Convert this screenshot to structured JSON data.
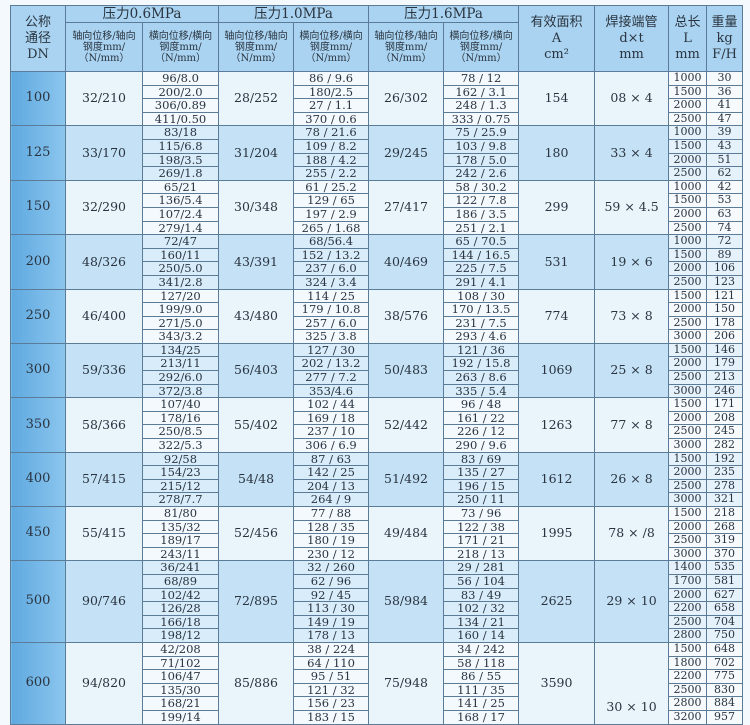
{
  "header": {
    "dn": [
      "公称",
      "通径",
      "DN"
    ],
    "pressures": [
      "压力0.6MPa",
      "压力1.0MPa",
      "压力1.6MPa"
    ],
    "axial": [
      "轴向位移/轴向",
      "钢度mm/",
      "（N/mm）"
    ],
    "lateral": [
      "横向位移/横向",
      "钢度mm/",
      "（N/mm）"
    ],
    "area": [
      "有效面积",
      "A",
      "cm²"
    ],
    "pipe": [
      "焊接端管",
      "d×t",
      "mm"
    ],
    "length": [
      "总长",
      "L",
      "mm"
    ],
    "weight": [
      "重量",
      "kg",
      "F/H"
    ]
  },
  "groups": [
    {
      "dn": "100",
      "a06": "32/210",
      "l06": [
        "96/8.0",
        "200/2.0",
        "306/0.89",
        "411/0.50"
      ],
      "a10": "28/252",
      "l10": [
        "86 / 9.6",
        "180/2.5",
        "27 / 1.1",
        "370 / 0.6"
      ],
      "a16": "26/302",
      "l16": [
        "78 / 12",
        "162 / 3.1",
        "248 / 1.3",
        "333 / 0.75"
      ],
      "area": "154",
      "pipe": "08 × 4",
      "len": [
        "1000",
        "1500",
        "2000",
        "2500"
      ],
      "wt": [
        "30",
        "36",
        "41",
        "47"
      ]
    },
    {
      "dn": "125",
      "a06": "33/170",
      "l06": [
        "83/18",
        "115/6.8",
        "198/3.5",
        "269/1.8"
      ],
      "a10": "31/204",
      "l10": [
        "78 / 21.6",
        "109 / 8.2",
        "188 / 4.2",
        "255 / 2.2"
      ],
      "a16": "29/245",
      "l16": [
        "75 / 25.9",
        "103 / 9.8",
        "178 / 5.0",
        "242 / 2.6"
      ],
      "area": "180",
      "pipe": "33 × 4",
      "len": [
        "1000",
        "1500",
        "2000",
        "2500"
      ],
      "wt": [
        "39",
        "43",
        "51",
        "62"
      ]
    },
    {
      "dn": "150",
      "a06": "32/290",
      "l06": [
        "65/21",
        "136/5.4",
        "107/2.4",
        "279/1.4"
      ],
      "a10": "30/348",
      "l10": [
        "61 / 25.2",
        "129 / 65",
        "197 / 2.9",
        "265 / 1.68"
      ],
      "a16": "27/417",
      "l16": [
        "58 / 30.2",
        "122 / 7.8",
        "186 / 3.5",
        "251 / 2.1"
      ],
      "area": "299",
      "pipe": "59 × 4.5",
      "len": [
        "1000",
        "1500",
        "2000",
        "2500"
      ],
      "wt": [
        "42",
        "53",
        "63",
        "74"
      ]
    },
    {
      "dn": "200",
      "a06": "48/326",
      "l06": [
        "72/47",
        "160/11",
        "250/5.0",
        "341/2.8"
      ],
      "a10": "43/391",
      "l10": [
        "68/56.4",
        "152 / 13.2",
        "237 / 6.0",
        "324 / 3.4"
      ],
      "a16": "40/469",
      "l16": [
        "65 / 70.5",
        "144 / 16.5",
        "225 / 7.5",
        "291 / 4.1"
      ],
      "area": "531",
      "pipe": "19 × 6",
      "len": [
        "1000",
        "1500",
        "2000",
        "2500"
      ],
      "wt": [
        "72",
        "89",
        "106",
        "123"
      ]
    },
    {
      "dn": "250",
      "a06": "46/400",
      "l06": [
        "127/20",
        "199/9.0",
        "271/5.0",
        "343/3.2"
      ],
      "a10": "43/480",
      "l10": [
        "114 / 25",
        "179 / 10.8",
        "257 / 6.0",
        "325 / 3.8"
      ],
      "a16": "38/576",
      "l16": [
        "108 / 30",
        "170 / 13.5",
        "231 / 7.5",
        "293 / 4.6"
      ],
      "area": "774",
      "pipe": "73 × 8",
      "len": [
        "1500",
        "2000",
        "2500",
        "3000"
      ],
      "wt": [
        "121",
        "150",
        "178",
        "206"
      ]
    },
    {
      "dn": "300",
      "a06": "59/336",
      "l06": [
        "134/25",
        "213/11",
        "292/6.0",
        "372/3.8"
      ],
      "a10": "56/403",
      "l10": [
        "127 / 30",
        "202 / 13.2",
        "277 / 7.2",
        "353/4.6"
      ],
      "a16": "50/483",
      "l16": [
        "121 / 36",
        "192 / 15.8",
        "263 / 8.6",
        "335 / 5.4"
      ],
      "area": "1069",
      "pipe": "25 × 8",
      "len": [
        "1500",
        "2000",
        "2500",
        "3000"
      ],
      "wt": [
        "146",
        "179",
        "213",
        "246"
      ]
    },
    {
      "dn": "350",
      "a06": "58/366",
      "l06": [
        "107/40",
        "178/16",
        "250/8.5",
        "322/5.3"
      ],
      "a10": "55/402",
      "l10": [
        "102 / 44",
        "169 / 18",
        "237 / 10",
        "306 / 6.9"
      ],
      "a16": "52/442",
      "l16": [
        "96 / 48",
        "161 / 22",
        "226 / 12",
        "290 / 9.6"
      ],
      "area": "1263",
      "pipe": "77 × 8",
      "len": [
        "1500",
        "2000",
        "2500",
        "3000"
      ],
      "wt": [
        "171",
        "208",
        "245",
        "282"
      ]
    },
    {
      "dn": "400",
      "a06": "57/415",
      "l06": [
        "92/58",
        "154/23",
        "215/12",
        "278/7.7"
      ],
      "a10": "54/48",
      "l10": [
        "87 / 63",
        "142 / 25",
        "204 / 13",
        "264 / 9"
      ],
      "a16": "51/492",
      "l16": [
        "83 / 69",
        "135 / 27",
        "196 / 15",
        "250 / 11"
      ],
      "area": "1612",
      "pipe": "26 × 8",
      "len": [
        "1500",
        "2000",
        "2500",
        "3000"
      ],
      "wt": [
        "192",
        "235",
        "278",
        "321"
      ]
    },
    {
      "dn": "450",
      "a06": "55/415",
      "l06": [
        "81/80",
        "135/32",
        "189/17",
        "243/11"
      ],
      "a10": "52/456",
      "l10": [
        "77 / 88",
        "128 / 35",
        "180 / 19",
        "230 / 12"
      ],
      "a16": "49/484",
      "l16": [
        "73 / 96",
        "122 / 38",
        "171 / 21",
        "218 / 13"
      ],
      "area": "1995",
      "pipe": "78 × /8",
      "len": [
        "1500",
        "2000",
        "2500",
        "3000"
      ],
      "wt": [
        "218",
        "268",
        "319",
        "370"
      ]
    },
    {
      "dn": "500",
      "a06": "90/746",
      "l06": [
        "36/241",
        "68/89",
        "102/42",
        "126/28",
        "166/18",
        "198/12"
      ],
      "a10": "72/895",
      "l10": [
        "32 / 260",
        "62 / 96",
        "92 / 45",
        "113 / 30",
        "149 / 19",
        "178 / 13"
      ],
      "a16": "58/984",
      "l16": [
        "29 / 281",
        "56 / 104",
        "83 / 49",
        "102 / 32",
        "134 / 21",
        "160 / 14"
      ],
      "area": "2625",
      "pipe": "29 × 10",
      "len": [
        "1400",
        "1700",
        "2000",
        "2200",
        "2500",
        "2800"
      ],
      "wt": [
        "535",
        "581",
        "627",
        "658",
        "704",
        "750"
      ]
    },
    {
      "dn": "600",
      "a06": "94/820",
      "l06": [
        "42/208",
        "71/102",
        "106/47",
        "135/30",
        "168/21",
        "199/14"
      ],
      "a10": "85/886",
      "l10": [
        "38 / 224",
        "64 / 110",
        "95 / 51",
        "121 / 32",
        "156 / 23",
        "183 / 15"
      ],
      "a16": "75/948",
      "l16": [
        "34 / 242",
        "58 / 118",
        "86 / 55",
        "111 / 35",
        "141 / 25",
        "168 / 17"
      ],
      "area": "3590",
      "pipe": "30 × 10",
      "len": [
        "1500",
        "1800",
        "2200",
        "2500",
        "2800",
        "3200"
      ],
      "wt": [
        "648",
        "702",
        "775",
        "830",
        "884",
        "957"
      ]
    }
  ],
  "colors": {
    "header": "#a9d3f0",
    "dn_column": "#6fb3e6",
    "row_light": "#eaf4fb",
    "row_blue": "#c4e1f5",
    "border": "#5a7c98"
  }
}
